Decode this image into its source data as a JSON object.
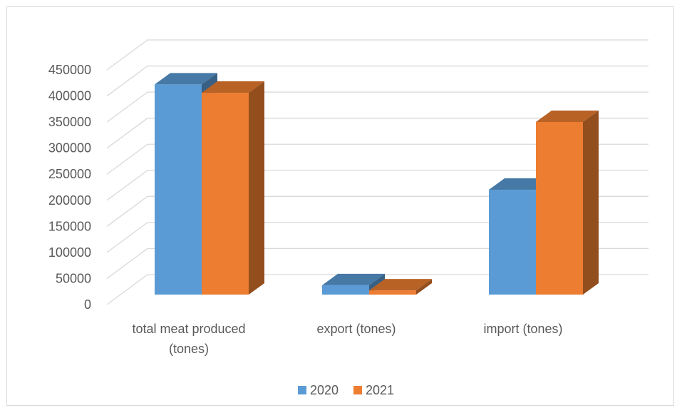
{
  "chart_data": {
    "type": "bar",
    "categories": [
      "total meat produced (tones)",
      "export (tones)",
      "import (tones)"
    ],
    "category_lines": [
      [
        "total meat produced",
        "(tones)"
      ],
      [
        "export (tones)"
      ],
      [
        "import (tones)"
      ]
    ],
    "series": [
      {
        "name": "2020",
        "values": [
          403000,
          18000,
          201000
        ],
        "color": "#5b9bd5"
      },
      {
        "name": "2021",
        "values": [
          387000,
          8000,
          331000
        ],
        "color": "#ed7d31"
      }
    ],
    "y_ticks": [
      "0",
      "50000",
      "100000",
      "150000",
      "200000",
      "250000",
      "300000",
      "350000",
      "400000",
      "450000"
    ],
    "ylim": [
      0,
      450000
    ],
    "grid": true,
    "legend": "bottom",
    "style": "3d-clustered-column"
  }
}
